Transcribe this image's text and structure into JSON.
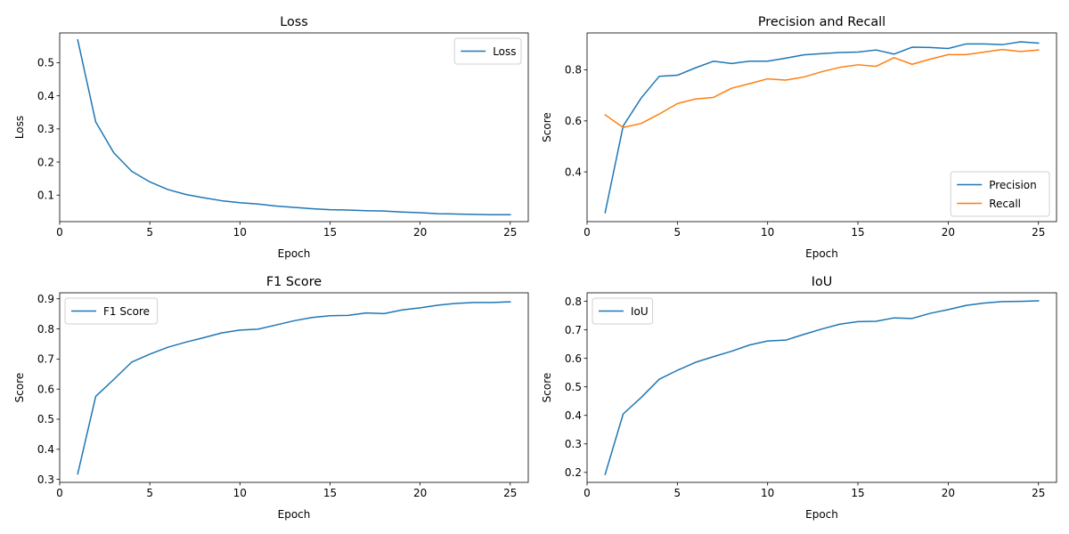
{
  "chart_data": [
    {
      "type": "line",
      "title": "Loss",
      "xlabel": "Epoch",
      "ylabel": "Loss",
      "xlim": [
        0,
        26
      ],
      "ylim": [
        0.02,
        0.59
      ],
      "xticks": [
        0,
        5,
        10,
        15,
        20,
        25
      ],
      "yticks": [
        0.1,
        0.2,
        0.3,
        0.4,
        0.5
      ],
      "ytick_decimals": 1,
      "grid": false,
      "legend_position": "top-right",
      "x": [
        1,
        2,
        3,
        4,
        5,
        6,
        7,
        8,
        9,
        10,
        11,
        12,
        13,
        14,
        15,
        16,
        17,
        18,
        19,
        20,
        21,
        22,
        23,
        24,
        25
      ],
      "series": [
        {
          "name": "Loss",
          "color": "#1f77b4",
          "values": [
            0.569,
            0.321,
            0.228,
            0.172,
            0.14,
            0.117,
            0.102,
            0.092,
            0.083,
            0.077,
            0.073,
            0.067,
            0.063,
            0.059,
            0.056,
            0.055,
            0.053,
            0.052,
            0.049,
            0.047,
            0.044,
            0.043,
            0.042,
            0.041,
            0.041
          ]
        }
      ]
    },
    {
      "type": "line",
      "title": "Precision and Recall",
      "xlabel": "Epoch",
      "ylabel": "Score",
      "xlim": [
        0,
        26
      ],
      "ylim": [
        0.205,
        0.945
      ],
      "xticks": [
        0,
        5,
        10,
        15,
        20,
        25
      ],
      "yticks": [
        0.4,
        0.6,
        0.8
      ],
      "ytick_decimals": 1,
      "grid": false,
      "legend_position": "bottom-right",
      "x": [
        1,
        2,
        3,
        4,
        5,
        6,
        7,
        8,
        9,
        10,
        11,
        12,
        13,
        14,
        15,
        16,
        17,
        18,
        19,
        20,
        21,
        22,
        23,
        24,
        25
      ],
      "series": [
        {
          "name": "Precision",
          "color": "#1f77b4",
          "values": [
            0.24,
            0.58,
            0.69,
            0.775,
            0.779,
            0.808,
            0.834,
            0.825,
            0.834,
            0.834,
            0.846,
            0.859,
            0.864,
            0.868,
            0.87,
            0.878,
            0.862,
            0.889,
            0.888,
            0.884,
            0.902,
            0.902,
            0.899,
            0.91,
            0.905
          ]
        },
        {
          "name": "Recall",
          "color": "#ff7f0e",
          "values": [
            0.624,
            0.574,
            0.59,
            0.627,
            0.668,
            0.686,
            0.692,
            0.728,
            0.746,
            0.765,
            0.76,
            0.772,
            0.793,
            0.81,
            0.82,
            0.814,
            0.848,
            0.822,
            0.842,
            0.86,
            0.86,
            0.87,
            0.88,
            0.872,
            0.878
          ]
        }
      ]
    },
    {
      "type": "line",
      "title": "F1 Score",
      "xlabel": "Epoch",
      "ylabel": "Score",
      "xlim": [
        0,
        26
      ],
      "ylim": [
        0.29,
        0.92
      ],
      "xticks": [
        0,
        5,
        10,
        15,
        20,
        25
      ],
      "yticks": [
        0.3,
        0.4,
        0.5,
        0.6,
        0.7,
        0.8,
        0.9
      ],
      "ytick_decimals": 1,
      "grid": false,
      "legend_position": "top-left",
      "x": [
        1,
        2,
        3,
        4,
        5,
        6,
        7,
        8,
        9,
        10,
        11,
        12,
        13,
        14,
        15,
        16,
        17,
        18,
        19,
        20,
        21,
        22,
        23,
        24,
        25
      ],
      "series": [
        {
          "name": "F1 Score",
          "color": "#1f77b4",
          "values": [
            0.318,
            0.576,
            0.632,
            0.69,
            0.716,
            0.739,
            0.756,
            0.771,
            0.787,
            0.796,
            0.799,
            0.813,
            0.827,
            0.838,
            0.844,
            0.845,
            0.853,
            0.851,
            0.863,
            0.87,
            0.879,
            0.885,
            0.888,
            0.888,
            0.89
          ]
        }
      ]
    },
    {
      "type": "line",
      "title": "IoU",
      "xlabel": "Epoch",
      "ylabel": "Score",
      "xlim": [
        0,
        26
      ],
      "ylim": [
        0.165,
        0.83
      ],
      "xticks": [
        0,
        5,
        10,
        15,
        20,
        25
      ],
      "yticks": [
        0.2,
        0.3,
        0.4,
        0.5,
        0.6,
        0.7,
        0.8
      ],
      "ytick_decimals": 1,
      "grid": false,
      "legend_position": "top-left",
      "x": [
        1,
        2,
        3,
        4,
        5,
        6,
        7,
        8,
        9,
        10,
        11,
        12,
        13,
        14,
        15,
        16,
        17,
        18,
        19,
        20,
        21,
        22,
        23,
        24,
        25
      ],
      "series": [
        {
          "name": "IoU",
          "color": "#1f77b4",
          "values": [
            0.193,
            0.405,
            0.463,
            0.527,
            0.558,
            0.586,
            0.606,
            0.625,
            0.647,
            0.661,
            0.664,
            0.684,
            0.703,
            0.72,
            0.729,
            0.73,
            0.742,
            0.74,
            0.758,
            0.771,
            0.786,
            0.794,
            0.799,
            0.8,
            0.802
          ]
        }
      ]
    }
  ]
}
